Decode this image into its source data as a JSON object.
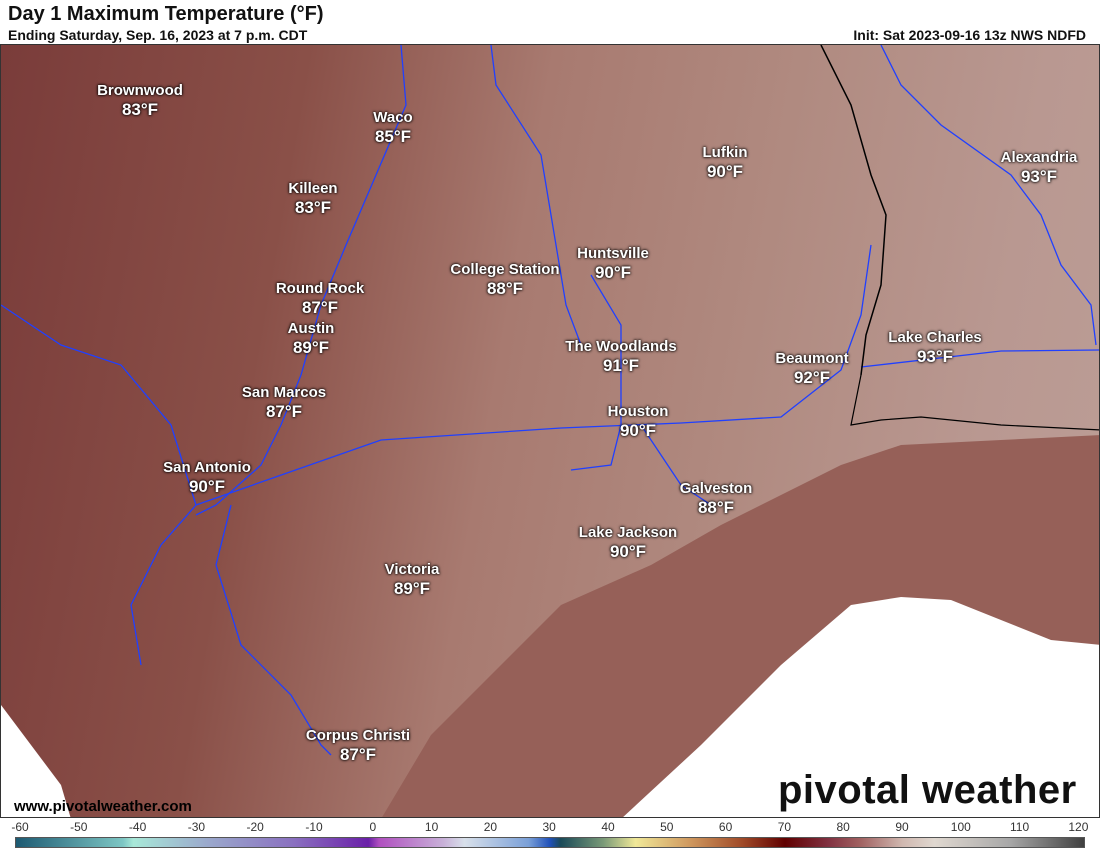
{
  "header": {
    "title": "Day 1 Maximum Temperature (°F)",
    "subtitle": "Ending Saturday, Sep. 16, 2023 at 7 p.m. CDT",
    "init": "Init: Sat 2023-09-16 13z NWS NDFD"
  },
  "cities": [
    {
      "name": "Brownwood",
      "temp": "83°F"
    },
    {
      "name": "Waco",
      "temp": "85°F"
    },
    {
      "name": "Killeen",
      "temp": "83°F"
    },
    {
      "name": "Lufkin",
      "temp": "90°F"
    },
    {
      "name": "Alexandria",
      "temp": "93°F"
    },
    {
      "name": "Huntsville",
      "temp": "90°F"
    },
    {
      "name": "College Station",
      "temp": "88°F"
    },
    {
      "name": "Round Rock",
      "temp": "87°F"
    },
    {
      "name": "Austin",
      "temp": "89°F"
    },
    {
      "name": "The Woodlands",
      "temp": "91°F"
    },
    {
      "name": "Beaumont",
      "temp": "92°F"
    },
    {
      "name": "Lake Charles",
      "temp": "93°F"
    },
    {
      "name": "San Marcos",
      "temp": "87°F"
    },
    {
      "name": "Houston",
      "temp": "90°F"
    },
    {
      "name": "San Antonio",
      "temp": "90°F"
    },
    {
      "name": "Galveston",
      "temp": "88°F"
    },
    {
      "name": "Lake Jackson",
      "temp": "90°F"
    },
    {
      "name": "Victoria",
      "temp": "89°F"
    },
    {
      "name": "Corpus Christi",
      "temp": "87°F"
    }
  ],
  "footer": {
    "url": "www.pivotalweather.com",
    "logo": "pivotal weather"
  },
  "colorbar": {
    "ticks": [
      "-60",
      "-50",
      "-40",
      "-30",
      "-20",
      "-10",
      "0",
      "10",
      "20",
      "30",
      "40",
      "50",
      "60",
      "70",
      "80",
      "90",
      "100",
      "110",
      "120"
    ],
    "unit": "°F"
  },
  "colors": {
    "land_hot": "#7a3c3a",
    "land_mild": "#bc9e96",
    "ocean": "#966058",
    "rivers": "#2040ff"
  }
}
